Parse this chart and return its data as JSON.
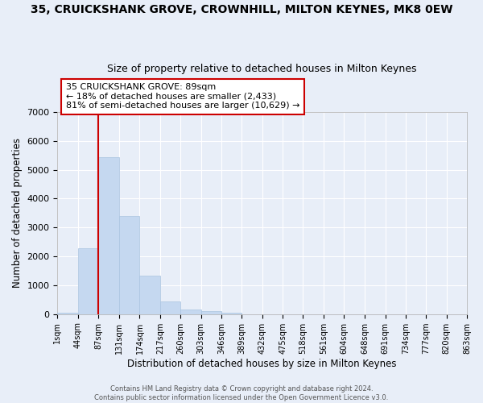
{
  "title": "35, CRUICKSHANK GROVE, CROWNHILL, MILTON KEYNES, MK8 0EW",
  "subtitle": "Size of property relative to detached houses in Milton Keynes",
  "xlabel": "Distribution of detached houses by size in Milton Keynes",
  "ylabel": "Number of detached properties",
  "bar_color": "#c5d8f0",
  "bar_edgecolor": "#aac4e0",
  "bg_color": "#e8eef8",
  "grid_color": "#ffffff",
  "bin_edges": [
    1,
    44,
    87,
    131,
    174,
    217,
    260,
    303,
    346,
    389,
    432,
    475,
    518,
    561,
    604,
    648,
    691,
    734,
    777,
    820,
    863
  ],
  "bar_heights": [
    60,
    2280,
    5450,
    3400,
    1340,
    450,
    170,
    90,
    50,
    0,
    0,
    0,
    0,
    0,
    0,
    0,
    0,
    0,
    0,
    0
  ],
  "tick_labels": [
    "1sqm",
    "44sqm",
    "87sqm",
    "131sqm",
    "174sqm",
    "217sqm",
    "260sqm",
    "303sqm",
    "346sqm",
    "389sqm",
    "432sqm",
    "475sqm",
    "518sqm",
    "561sqm",
    "604sqm",
    "648sqm",
    "691sqm",
    "734sqm",
    "777sqm",
    "820sqm",
    "863sqm"
  ],
  "ylim": [
    0,
    7000
  ],
  "yticks": [
    0,
    1000,
    2000,
    3000,
    4000,
    5000,
    6000,
    7000
  ],
  "vline_x": 87,
  "annotation_title": "35 CRUICKSHANK GROVE: 89sqm",
  "annotation_line1": "← 18% of detached houses are smaller (2,433)",
  "annotation_line2": "81% of semi-detached houses are larger (10,629) →",
  "annotation_box_facecolor": "#ffffff",
  "annotation_box_edgecolor": "#cc0000",
  "vline_color": "#cc0000",
  "footer_line1": "Contains HM Land Registry data © Crown copyright and database right 2024.",
  "footer_line2": "Contains public sector information licensed under the Open Government Licence v3.0.",
  "title_fontsize": 10,
  "subtitle_fontsize": 9,
  "label_fontsize": 8.5,
  "tick_fontsize": 7,
  "annotation_fontsize": 8,
  "footer_fontsize": 6
}
